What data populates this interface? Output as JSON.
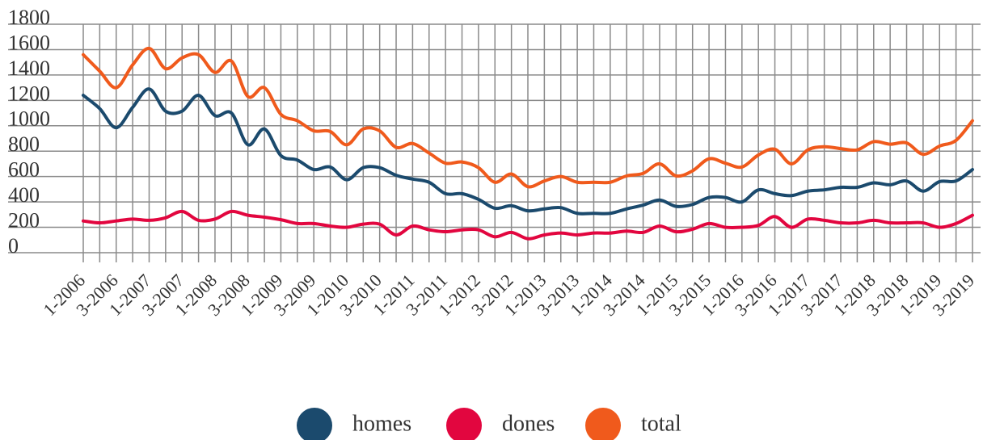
{
  "chart_data": {
    "type": "line",
    "categories": [
      "1-2006",
      null,
      "3-2006",
      null,
      "1-2007",
      null,
      "3-2007",
      null,
      "1-2008",
      null,
      "3-2008",
      null,
      "1-2009",
      null,
      "3-2009",
      null,
      "1-2010",
      null,
      "3-2010",
      null,
      "1-2011",
      null,
      "3-2011",
      null,
      "1-2012",
      null,
      "3-2012",
      null,
      "1-2013",
      null,
      "3-2013",
      null,
      "1-2014",
      null,
      "3-2014",
      null,
      "1-2015",
      null,
      "3-2015",
      null,
      "1-2016",
      null,
      "3-2016",
      null,
      "1-2017",
      null,
      "3-2017",
      null,
      "1-2018",
      null,
      "3-2018",
      null,
      "1-2019",
      null,
      "3-2019"
    ],
    "series": [
      {
        "name": "homes",
        "color": "#1b4a6d",
        "values": [
          1240,
          1135,
          985,
          1145,
          1290,
          1115,
          1115,
          1240,
          1080,
          1100,
          850,
          975,
          765,
          730,
          655,
          675,
          575,
          670,
          670,
          610,
          580,
          555,
          465,
          465,
          420,
          350,
          370,
          330,
          345,
          355,
          310,
          310,
          310,
          345,
          375,
          415,
          365,
          380,
          435,
          435,
          400,
          495,
          465,
          450,
          485,
          495,
          515,
          515,
          550,
          535,
          565,
          485,
          560,
          565,
          655
        ]
      },
      {
        "name": "dones",
        "color": "#e2063f",
        "values": [
          250,
          235,
          250,
          265,
          255,
          275,
          325,
          255,
          265,
          325,
          295,
          280,
          260,
          230,
          230,
          210,
          200,
          225,
          225,
          140,
          210,
          180,
          165,
          180,
          180,
          125,
          160,
          110,
          140,
          155,
          140,
          155,
          155,
          170,
          160,
          210,
          165,
          185,
          230,
          200,
          200,
          215,
          285,
          200,
          265,
          255,
          235,
          235,
          255,
          235,
          235,
          235,
          200,
          230,
          295
        ]
      },
      {
        "name": "total",
        "color": "#f05a1c",
        "values": [
          1560,
          1430,
          1300,
          1480,
          1610,
          1450,
          1535,
          1560,
          1420,
          1510,
          1230,
          1300,
          1090,
          1040,
          960,
          955,
          850,
          975,
          960,
          830,
          860,
          785,
          705,
          715,
          670,
          555,
          620,
          520,
          565,
          600,
          555,
          555,
          555,
          605,
          625,
          700,
          605,
          645,
          740,
          705,
          675,
          770,
          815,
          700,
          810,
          835,
          820,
          810,
          875,
          855,
          865,
          775,
          840,
          885,
          1040
        ]
      }
    ],
    "ylim": [
      0,
      1800
    ],
    "yticks": [
      0,
      200,
      400,
      600,
      800,
      1000,
      1200,
      1400,
      1600,
      1800
    ],
    "grid": true,
    "legend": "bottom"
  }
}
